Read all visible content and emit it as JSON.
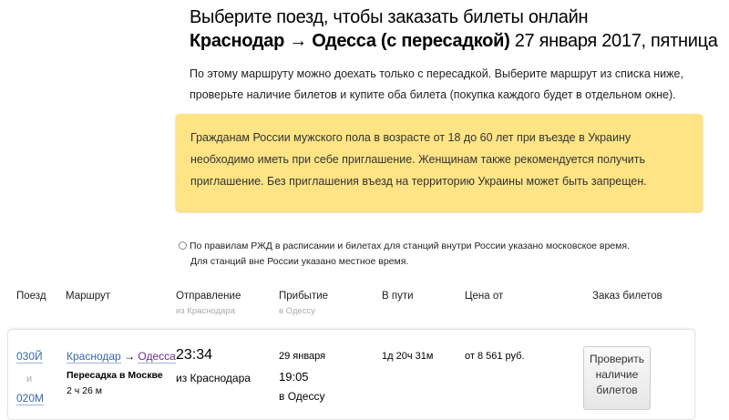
{
  "header": {
    "title": "Выберите поезд, чтобы заказать билеты онлайн",
    "route": "Краснодар → Одесса (с пересадкой)",
    "date": "27 января 2017, пятница"
  },
  "intro": "По этому маршруту можно доехать только с пересадкой. Выберите маршрут из списка ниже, проверьте наличие билетов и купите оба билета (покупка каждого будет в отдельном окне).",
  "warning": "Гражданам России мужского пола в возрасте от 18 до 60 лет при въезде в Украину необходимо иметь при себе приглашение. Женщинам также рекомендуется получить приглашение. Без приглашения въезд на территорию Украины может быть запрещен.",
  "note": {
    "line1": "По правилам РЖД в расписании и билетах для станций внутри России указано московское время.",
    "line2": "Для станций вне России указано местное время.",
    "icon": "clock-icon"
  },
  "columns": {
    "train": "Поезд",
    "route": "Маршрут",
    "departure": "Отправление",
    "departure_sub": "из Краснодара",
    "arrival": "Прибытие",
    "arrival_sub": "в Одессу",
    "duration": "В пути",
    "price": "Цена от",
    "order": "Заказ билетов"
  },
  "row": {
    "train1": "030Й",
    "and": "и",
    "train2": "020М",
    "from": "Краснодар",
    "arrow": "→",
    "to": "Одесса",
    "transfer": "Пересадка в Москве",
    "transfer_time": "2 ч 26 м",
    "dep_time": "23:34",
    "dep_station": "из Краснодара",
    "arr_date": "29 января",
    "arr_time": "19:05",
    "arr_station": "в Одессу",
    "duration": "1д 20ч 31м",
    "price": "от 8 561 руб.",
    "button": "Проверить наличие билетов"
  }
}
